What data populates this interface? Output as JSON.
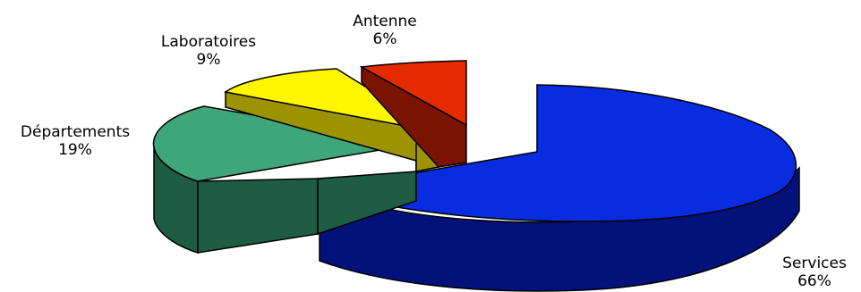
{
  "chart_data": {
    "type": "pie",
    "style": "3d-exploded",
    "title": "",
    "slices": [
      {
        "label": "Services",
        "value": 66,
        "value_label": "66%",
        "color": "#0A2CE0",
        "side_color": "#03127A"
      },
      {
        "label": "Départements",
        "value": 19,
        "value_label": "19%",
        "color": "#3FA57A",
        "side_color": "#1E5C44"
      },
      {
        "label": "Laboratoires",
        "value": 9,
        "value_label": "9%",
        "color": "#FFF600",
        "side_color": "#9C9300"
      },
      {
        "label": "Antenne",
        "value": 6,
        "value_label": "6%",
        "color": "#E62A00",
        "side_color": "#7A1400"
      }
    ]
  }
}
